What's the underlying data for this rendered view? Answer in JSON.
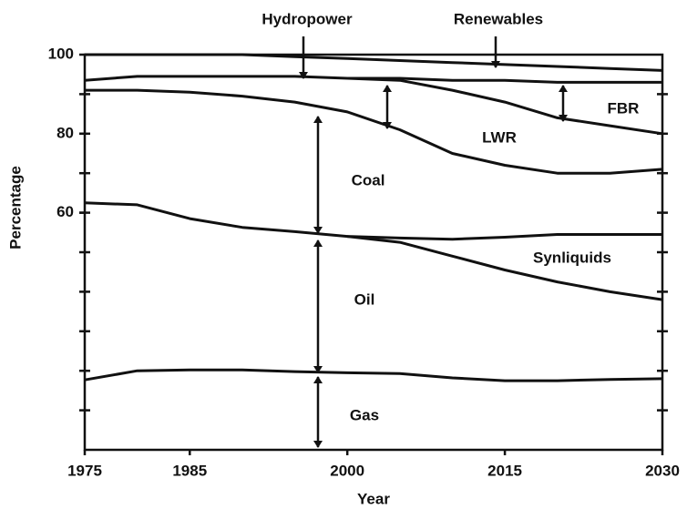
{
  "chart_data": {
    "type": "line",
    "xlabel": "Year",
    "ylabel": "Percentage",
    "x": [
      1975,
      1980,
      1985,
      1990,
      1995,
      2000,
      2005,
      2010,
      2015,
      2020,
      2025,
      2030
    ],
    "series": [
      {
        "color": "#111111",
        "values": [
          100,
          100,
          100,
          100,
          99.5,
          99,
          98.5,
          98,
          97.5,
          97,
          96.5,
          96
        ]
      },
      {
        "color": "#111111",
        "values": [
          93.5,
          94.5,
          94.5,
          94.5,
          94.5,
          94,
          94,
          93.5,
          93.5,
          93,
          93,
          93
        ]
      },
      {
        "color": "#111111",
        "values": [
          91,
          91,
          90.5,
          89.5,
          88,
          85.5,
          81,
          75,
          72,
          70,
          70,
          71
        ]
      },
      {
        "color": "#111111",
        "values": [
          null,
          null,
          null,
          null,
          null,
          94,
          93.5,
          91,
          88,
          84,
          82,
          80
        ]
      },
      {
        "color": "#111111",
        "values": [
          62.5,
          62,
          58.5,
          56.3,
          55.2,
          54,
          53.6,
          53.3,
          53.8,
          54.5,
          54.5,
          54.5
        ]
      },
      {
        "color": "#111111",
        "values": [
          null,
          null,
          null,
          null,
          null,
          54,
          52.5,
          49,
          45.5,
          42.5,
          40,
          38
        ]
      },
      {
        "color": "#111111",
        "values": [
          17.7,
          20,
          20.2,
          20.2,
          19.8,
          19.5,
          19.3,
          18.2,
          17.5,
          17.5,
          17.8,
          18
        ]
      }
    ],
    "annotations": [
      "Hydropower",
      "Renewables",
      "FBR",
      "LWR",
      "Coal",
      "Synliquids",
      "Oil",
      "Gas"
    ],
    "xlim": [
      1975,
      2030
    ],
    "xticks": [
      1975,
      1985,
      2000,
      2015,
      2030
    ],
    "ylim": [
      0,
      100
    ],
    "yticks": [
      60,
      80,
      100
    ],
    "yminorticks": [
      10,
      20,
      30,
      40,
      50,
      60,
      70,
      80,
      90
    ],
    "grid": false
  }
}
